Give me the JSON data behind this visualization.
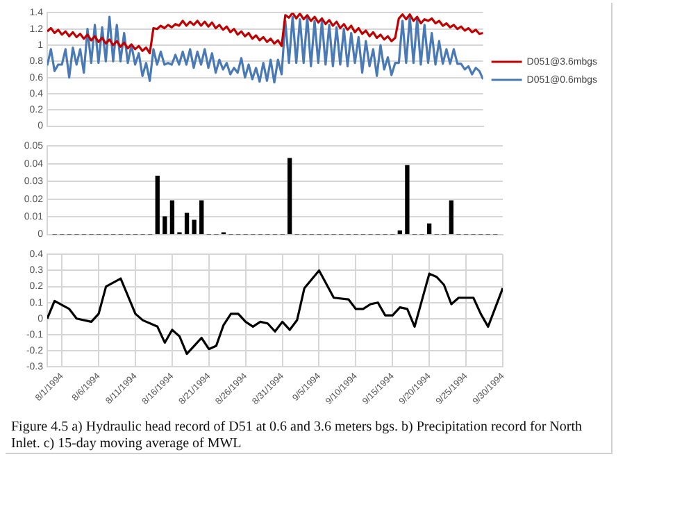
{
  "chart_data": [
    {
      "type": "line",
      "ylim": [
        0,
        1.4
      ],
      "yticks": [
        0,
        0.2,
        0.4,
        0.6,
        0.8,
        1,
        1.2,
        1.4
      ],
      "grid": "y",
      "legend": "right",
      "tick_labels": "y",
      "categories": [
        null,
        null,
        null,
        null,
        null,
        null,
        null,
        null,
        null,
        null,
        null,
        null,
        null,
        null,
        null,
        null,
        null,
        null,
        null,
        null,
        null,
        null,
        null,
        null,
        null,
        null,
        null,
        null,
        null,
        null,
        null,
        null,
        null,
        null,
        null,
        null,
        null,
        null,
        null,
        null,
        null,
        null,
        null,
        null,
        null,
        null,
        null,
        null,
        null,
        null,
        null,
        null,
        null,
        null,
        null,
        null,
        null,
        null,
        null,
        null,
        null,
        null,
        null,
        null,
        null,
        null,
        null,
        null,
        null,
        null,
        null,
        null,
        null,
        null,
        null,
        null,
        null,
        null,
        null,
        null,
        null,
        null,
        null,
        null,
        null,
        null,
        null,
        null,
        null,
        null,
        null,
        null,
        null,
        null,
        null,
        null,
        null,
        null,
        null,
        null,
        null,
        null,
        null,
        null,
        null,
        null,
        null,
        null,
        null,
        null,
        null,
        null,
        null,
        null,
        null,
        null,
        null,
        null,
        null,
        null
      ],
      "series": [
        {
          "name": "D051@3.6mbgs",
          "color": "#c00000",
          "values": [
            1.17,
            1.21,
            1.15,
            1.19,
            1.13,
            1.17,
            1.11,
            1.16,
            1.1,
            1.14,
            1.08,
            1.13,
            1.06,
            1.11,
            1.04,
            1.09,
            1.02,
            1.07,
            1.0,
            1.05,
            0.98,
            1.03,
            0.96,
            1.01,
            0.95,
            0.99,
            0.93,
            0.97,
            0.9,
            1.21,
            1.2,
            1.24,
            1.21,
            1.25,
            1.22,
            1.26,
            1.24,
            1.3,
            1.24,
            1.29,
            1.25,
            1.3,
            1.24,
            1.29,
            1.23,
            1.28,
            1.21,
            1.25,
            1.19,
            1.23,
            1.16,
            1.2,
            1.13,
            1.17,
            1.11,
            1.15,
            1.08,
            1.12,
            1.06,
            1.1,
            1.04,
            1.08,
            1.02,
            1.06,
            0.99,
            1.37,
            1.34,
            1.4,
            1.33,
            1.39,
            1.32,
            1.37,
            1.3,
            1.35,
            1.28,
            1.33,
            1.26,
            1.31,
            1.24,
            1.29,
            1.21,
            1.26,
            1.19,
            1.24,
            1.16,
            1.21,
            1.14,
            1.18,
            1.11,
            1.16,
            1.09,
            1.13,
            1.07,
            1.11,
            1.05,
            1.09,
            1.33,
            1.38,
            1.32,
            1.38,
            1.3,
            1.35,
            1.27,
            1.32,
            1.3,
            1.33,
            1.27,
            1.3,
            1.24,
            1.27,
            1.22,
            1.25,
            1.2,
            1.23,
            1.18,
            1.21,
            1.16,
            1.19,
            1.14,
            1.15
          ]
        },
        {
          "name": "D051@0.6mbgs",
          "color": "#4a7ab5",
          "values": [
            0.75,
            0.95,
            0.68,
            0.76,
            0.76,
            0.95,
            0.6,
            0.97,
            0.76,
            0.95,
            0.66,
            1.2,
            0.78,
            1.25,
            0.78,
            1.22,
            0.8,
            1.35,
            0.8,
            1.25,
            0.8,
            1.15,
            0.78,
            1.0,
            0.76,
            0.9,
            0.62,
            0.78,
            0.56,
            0.95,
            0.76,
            0.92,
            0.76,
            0.78,
            0.76,
            0.88,
            0.76,
            0.92,
            0.76,
            0.95,
            0.72,
            0.92,
            0.76,
            0.95,
            0.72,
            0.9,
            0.66,
            0.82,
            0.7,
            0.78,
            0.64,
            0.72,
            0.66,
            0.84,
            0.6,
            0.76,
            0.58,
            0.72,
            0.55,
            0.78,
            0.56,
            0.82,
            0.54,
            0.82,
            0.64,
            1.3,
            0.78,
            1.35,
            0.78,
            1.32,
            0.78,
            1.35,
            0.74,
            1.3,
            0.78,
            1.3,
            0.76,
            1.25,
            0.74,
            1.22,
            0.76,
            1.2,
            0.74,
            1.15,
            0.78,
            1.1,
            0.66,
            1.05,
            0.74,
            0.95,
            0.62,
            1.0,
            0.7,
            0.85,
            0.63,
            0.78,
            0.78,
            1.3,
            0.78,
            1.35,
            0.78,
            1.32,
            0.76,
            1.25,
            0.78,
            1.15,
            0.76,
            1.05,
            0.77,
            0.95,
            0.77,
            0.95,
            0.77,
            0.77,
            0.7,
            0.74,
            0.64,
            0.72,
            0.68,
            0.58
          ]
        }
      ]
    },
    {
      "type": "bar",
      "ylim": [
        0,
        0.05
      ],
      "yticks": [
        0,
        0.01,
        0.02,
        0.03,
        0.04,
        0.05
      ],
      "grid": "y",
      "tick_labels": "y",
      "categories": [
        null,
        null,
        null,
        null,
        null,
        null,
        null,
        null,
        null,
        null,
        null,
        null,
        null,
        null,
        null,
        null,
        null,
        null,
        null,
        null,
        null,
        null,
        null,
        null,
        null,
        null,
        null,
        null,
        null,
        null,
        null,
        null,
        null,
        null,
        null,
        null,
        null,
        null,
        null,
        null,
        null,
        null,
        null,
        null,
        null,
        null,
        null,
        null,
        null,
        null,
        null,
        null,
        null,
        null,
        null,
        null,
        null,
        null,
        null,
        null,
        null
      ],
      "values": [
        0,
        0,
        0,
        0,
        0,
        0,
        0,
        0,
        0,
        0,
        0,
        0,
        0,
        0,
        0.033,
        0.01,
        0.019,
        0.001,
        0.012,
        0.008,
        0.019,
        0,
        0,
        0.001,
        0,
        0,
        0,
        0,
        0,
        0,
        0,
        0,
        0.043,
        0,
        0,
        0,
        0,
        0,
        0,
        0,
        0,
        0,
        0,
        0,
        0,
        0,
        0,
        0.002,
        0.039,
        0,
        0,
        0.006,
        0,
        0,
        0.019,
        0,
        0,
        0,
        0,
        0,
        0
      ],
      "color": "#000000"
    },
    {
      "type": "line",
      "xlim": [
        "1994-07-30",
        "1994-09-30"
      ],
      "xticks": [
        {
          "value": "1994-08-01",
          "label": "8/1/1994"
        },
        {
          "value": "1994-08-06",
          "label": "8/6/1994"
        },
        {
          "value": "1994-08-11",
          "label": "8/11/1994"
        },
        {
          "value": "1994-08-16",
          "label": "8/16/1994"
        },
        {
          "value": "1994-08-21",
          "label": "8/21/1994"
        },
        {
          "value": "1994-08-26",
          "label": "8/26/1994"
        },
        {
          "value": "1994-08-31",
          "label": "8/31/1994"
        },
        {
          "value": "1994-09-05",
          "label": "9/5/1994"
        },
        {
          "value": "1994-09-10",
          "label": "9/10/1994"
        },
        {
          "value": "1994-09-15",
          "label": "9/15/1994"
        },
        {
          "value": "1994-09-20",
          "label": "9/20/1994"
        },
        {
          "value": "1994-09-25",
          "label": "9/25/1994"
        },
        {
          "value": "1994-09-30",
          "label": "9/30/1994"
        }
      ],
      "ylim": [
        -0.3,
        0.4
      ],
      "yticks": [
        -0.3,
        -0.2,
        -0.1,
        0,
        0.1,
        0.2,
        0.3,
        0.4
      ],
      "grid": true,
      "x": [
        "1994-07-30",
        "1994-07-31",
        "1994-08-02",
        "1994-08-03",
        "1994-08-05",
        "1994-08-06",
        "1994-08-07",
        "1994-08-09",
        "1994-08-11",
        "1994-08-12",
        "1994-08-14",
        "1994-08-15",
        "1994-08-16",
        "1994-08-17",
        "1994-08-18",
        "1994-08-19",
        "1994-08-20",
        "1994-08-21",
        "1994-08-22",
        "1994-08-23",
        "1994-08-24",
        "1994-08-25",
        "1994-08-26",
        "1994-08-27",
        "1994-08-28",
        "1994-08-29",
        "1994-08-30",
        "1994-08-31",
        "1994-09-01",
        "1994-09-02",
        "1994-09-03",
        "1994-09-05",
        "1994-09-07",
        "1994-09-09",
        "1994-09-10",
        "1994-09-11",
        "1994-09-12",
        "1994-09-13",
        "1994-09-14",
        "1994-09-15",
        "1994-09-16",
        "1994-09-17",
        "1994-09-18",
        "1994-09-20",
        "1994-09-21",
        "1994-09-22",
        "1994-09-23",
        "1994-09-24",
        "1994-09-26",
        "1994-09-27",
        "1994-09-28",
        "1994-09-30"
      ],
      "values": [
        0.0,
        0.11,
        0.06,
        0.0,
        -0.02,
        0.03,
        0.2,
        0.25,
        0.03,
        -0.01,
        -0.05,
        -0.15,
        -0.07,
        -0.11,
        -0.22,
        -0.17,
        -0.12,
        -0.19,
        -0.17,
        -0.04,
        0.03,
        0.03,
        -0.02,
        -0.05,
        -0.02,
        -0.03,
        -0.08,
        -0.02,
        -0.07,
        -0.01,
        0.19,
        0.3,
        0.13,
        0.12,
        0.06,
        0.06,
        0.09,
        0.1,
        0.02,
        0.02,
        0.07,
        0.06,
        -0.05,
        0.28,
        0.26,
        0.21,
        0.09,
        0.13,
        0.13,
        0.03,
        -0.05,
        0.19
      ],
      "color": "#000000",
      "annotations": [
        "Figure 4.5 a) Hydraulic head record of D51 at 0.6 and 3.6 meters bgs. b) Precipitation record for North Inlet. c) 15-day moving average of MWL"
      ]
    }
  ]
}
